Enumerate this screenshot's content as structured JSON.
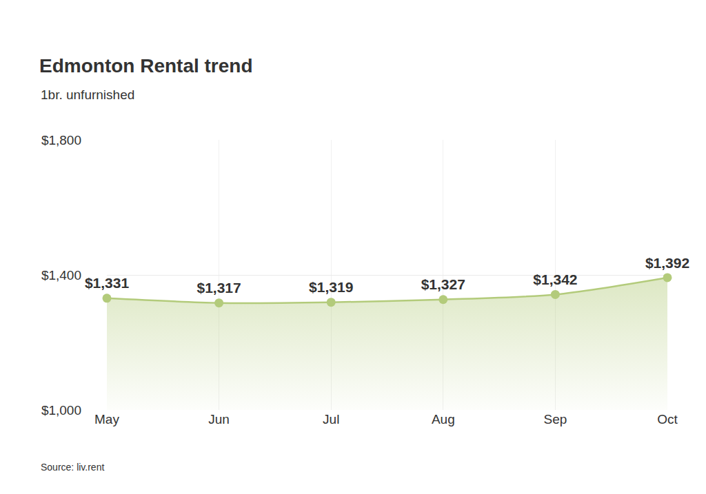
{
  "chart_data": {
    "type": "line",
    "title": "Edmonton Rental trend",
    "subtitle": "1br. unfurnished",
    "source": "Source: liv.rent",
    "categories": [
      "May",
      "Jun",
      "Jul",
      "Aug",
      "Sep",
      "Oct"
    ],
    "values": [
      1331,
      1317,
      1319,
      1327,
      1342,
      1392
    ],
    "value_labels": [
      "$1,331",
      "$1,317",
      "$1,319",
      "$1,327",
      "$1,342",
      "$1,392"
    ],
    "color": "#b3cb7b",
    "marker": "circle",
    "ylim": [
      1000,
      1800
    ],
    "yticks": [
      {
        "value": 1000,
        "label": "$1,000"
      },
      {
        "value": 1400,
        "label": "$1,400"
      },
      {
        "value": 1800,
        "label": "$1,800"
      }
    ],
    "grid": true,
    "data_labels": true
  }
}
